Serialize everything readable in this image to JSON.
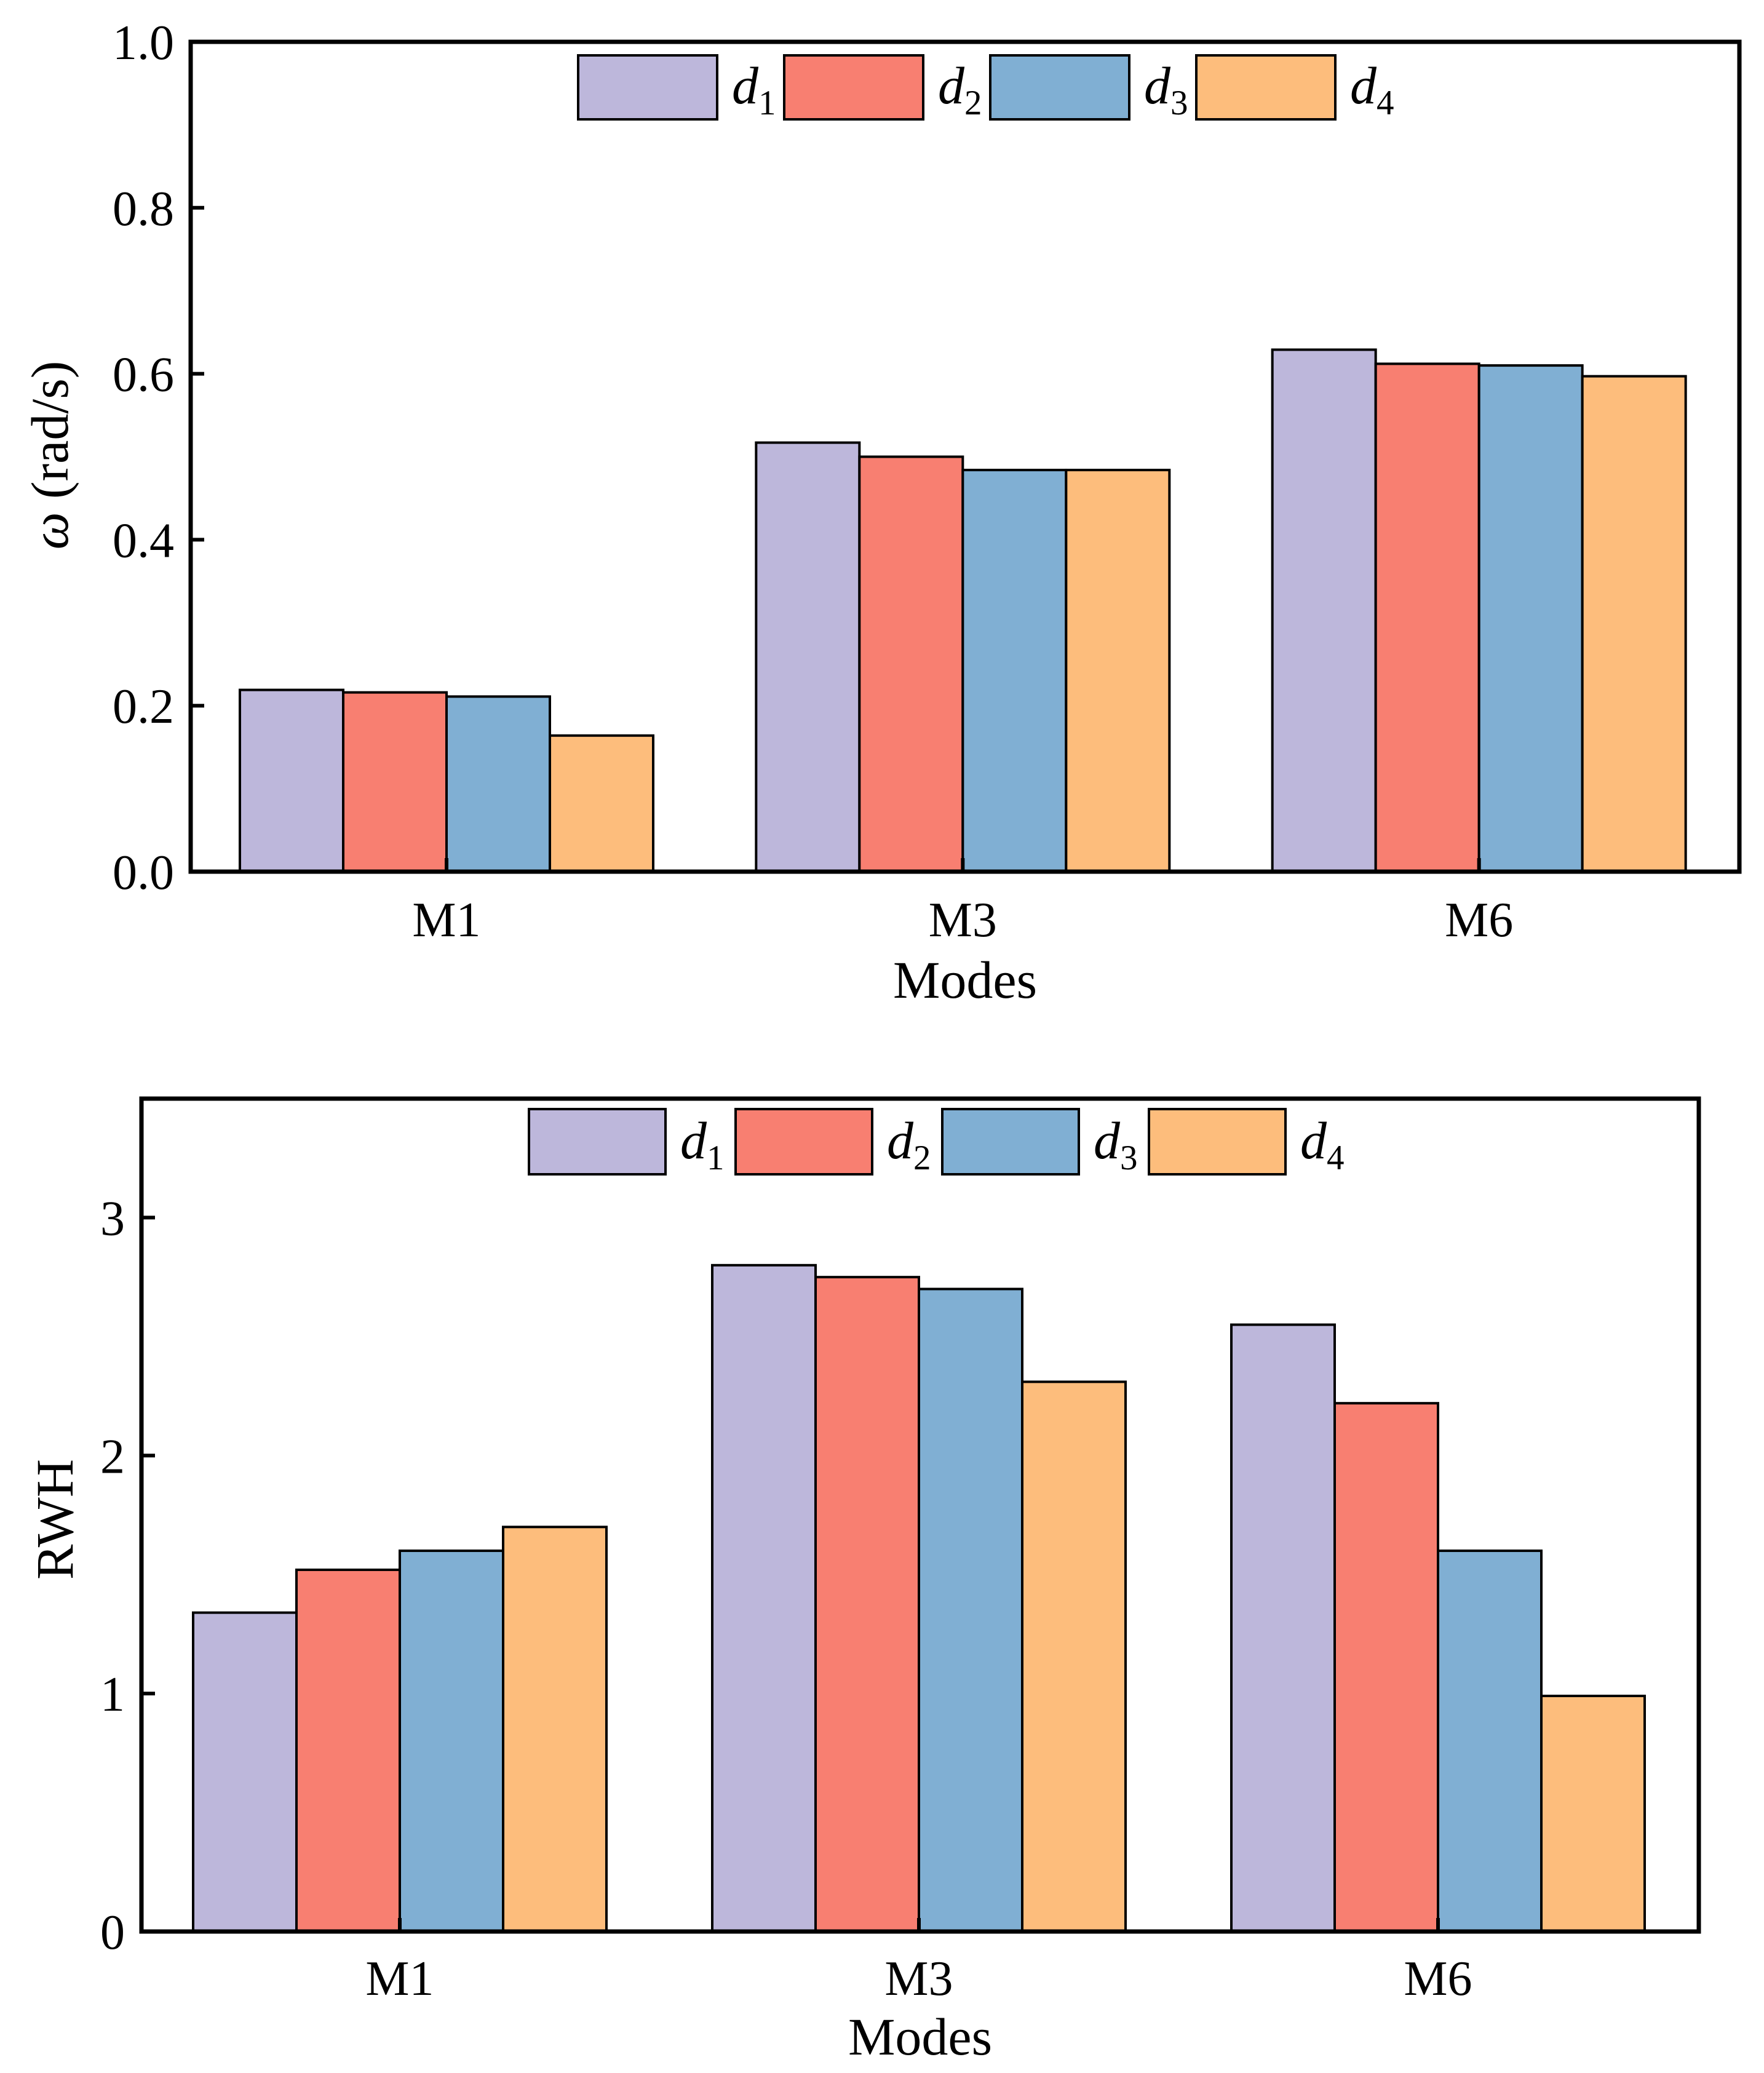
{
  "colors": {
    "d1": "#BDB7DB",
    "d2": "#F87F71",
    "d3": "#80AFD3",
    "d4": "#FDBD7C",
    "frame": "#000000"
  },
  "chart_data": [
    {
      "type": "bar",
      "title": "",
      "xlabel": "Modes",
      "ylabel_symbol": "ω",
      "ylabel_unit": " (rad/s)",
      "categories": [
        "M1",
        "M3",
        "M6"
      ],
      "ylim": [
        0,
        1.0
      ],
      "yticks": [
        0.0,
        0.2,
        0.4,
        0.6,
        0.8,
        1.0
      ],
      "ytick_labels": [
        "0.0",
        "0.2",
        "0.4",
        "0.6",
        "0.8",
        "1.0"
      ],
      "series": [
        {
          "name": "d",
          "sub": "1",
          "color_key": "d1",
          "values": [
            0.219,
            0.517,
            0.629
          ]
        },
        {
          "name": "d",
          "sub": "2",
          "color_key": "d2",
          "values": [
            0.216,
            0.5,
            0.612
          ]
        },
        {
          "name": "d",
          "sub": "3",
          "color_key": "d3",
          "values": [
            0.211,
            0.484,
            0.61
          ]
        },
        {
          "name": "d",
          "sub": "4",
          "color_key": "d4",
          "values": [
            0.164,
            0.484,
            0.597
          ]
        }
      ],
      "legend": "top-center",
      "grid": false
    },
    {
      "type": "bar",
      "title": "",
      "xlabel": "Modes",
      "ylabel_symbol": "",
      "ylabel_unit": "RWH",
      "categories": [
        "M1",
        "M3",
        "M6"
      ],
      "ylim": [
        0,
        3.5
      ],
      "yticks": [
        0,
        1,
        2,
        3
      ],
      "ytick_labels": [
        "0",
        "1",
        "2",
        "3"
      ],
      "series": [
        {
          "name": "d",
          "sub": "1",
          "color_key": "d1",
          "values": [
            1.34,
            2.8,
            2.55
          ]
        },
        {
          "name": "d",
          "sub": "2",
          "color_key": "d2",
          "values": [
            1.52,
            2.75,
            2.22
          ]
        },
        {
          "name": "d",
          "sub": "3",
          "color_key": "d3",
          "values": [
            1.6,
            2.7,
            1.6
          ]
        },
        {
          "name": "d",
          "sub": "4",
          "color_key": "d4",
          "values": [
            1.7,
            2.31,
            0.99
          ]
        }
      ],
      "legend": "top-center",
      "grid": false
    }
  ]
}
